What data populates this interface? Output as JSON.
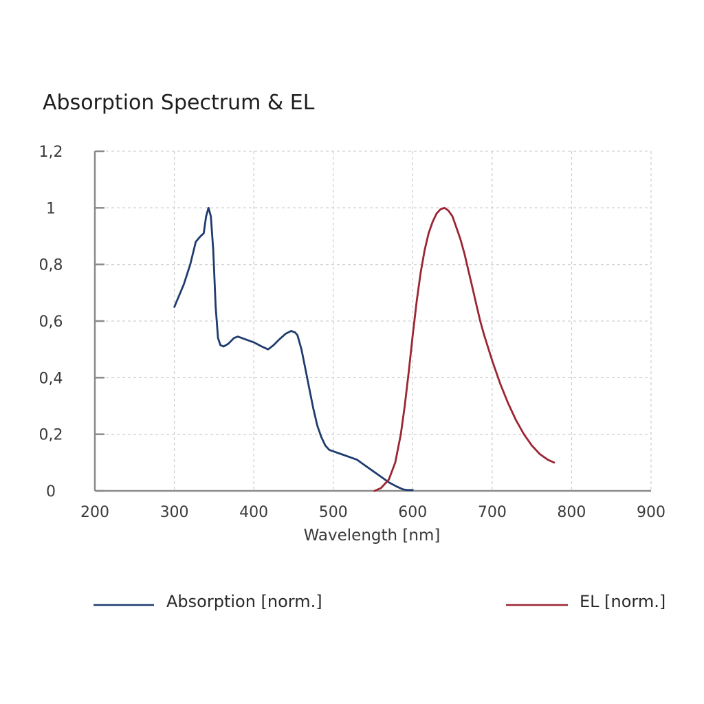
{
  "chart_data": {
    "type": "line",
    "title": "Absorption Spectrum & EL",
    "xlabel": "Wavelength [nm]",
    "ylabel": "",
    "xlim": [
      200,
      900
    ],
    "ylim": [
      0,
      1.2
    ],
    "xticks": [
      200,
      300,
      400,
      500,
      600,
      700,
      800,
      900
    ],
    "xtick_labels": [
      "200",
      "300",
      "400",
      "500",
      "600",
      "700",
      "800",
      "900"
    ],
    "yticks": [
      0,
      0.2,
      0.4,
      0.6,
      0.8,
      1.0,
      1.2
    ],
    "ytick_labels": [
      "0",
      "0,2",
      "0,4",
      "0,6",
      "0,8",
      "1",
      "1,2"
    ],
    "grid": true,
    "legend_position": "bottom",
    "series": [
      {
        "name": "Absorption [norm.]",
        "color": "#1f3c6e",
        "x": [
          300,
          312,
          320,
          327,
          333,
          337,
          340,
          343,
          346,
          349,
          352,
          355,
          358,
          362,
          368,
          375,
          380,
          390,
          400,
          410,
          418,
          425,
          432,
          440,
          447,
          452,
          455,
          460,
          465,
          470,
          475,
          480,
          485,
          490,
          495,
          500,
          510,
          520,
          530,
          540,
          550,
          560,
          570,
          580,
          588,
          593,
          600
        ],
        "y": [
          0.65,
          0.73,
          0.8,
          0.88,
          0.9,
          0.91,
          0.97,
          1.0,
          0.97,
          0.85,
          0.65,
          0.54,
          0.515,
          0.51,
          0.52,
          0.54,
          0.545,
          0.535,
          0.525,
          0.51,
          0.5,
          0.515,
          0.535,
          0.555,
          0.565,
          0.56,
          0.55,
          0.5,
          0.43,
          0.36,
          0.29,
          0.23,
          0.19,
          0.16,
          0.145,
          0.14,
          0.13,
          0.12,
          0.11,
          0.09,
          0.07,
          0.05,
          0.03,
          0.015,
          0.005,
          0.003,
          0.003
        ]
      },
      {
        "name": "EL [norm.]",
        "color": "#9b2533",
        "x": [
          552,
          560,
          570,
          578,
          585,
          590,
          595,
          600,
          605,
          610,
          615,
          620,
          625,
          630,
          635,
          640,
          645,
          650,
          655,
          660,
          665,
          670,
          675,
          680,
          685,
          690,
          700,
          710,
          720,
          730,
          740,
          750,
          760,
          770,
          778
        ],
        "y": [
          0.0,
          0.01,
          0.04,
          0.1,
          0.2,
          0.3,
          0.42,
          0.55,
          0.67,
          0.77,
          0.85,
          0.91,
          0.95,
          0.98,
          0.995,
          1.0,
          0.99,
          0.97,
          0.93,
          0.89,
          0.84,
          0.78,
          0.72,
          0.66,
          0.6,
          0.55,
          0.46,
          0.38,
          0.31,
          0.25,
          0.2,
          0.16,
          0.13,
          0.11,
          0.1
        ]
      }
    ]
  }
}
